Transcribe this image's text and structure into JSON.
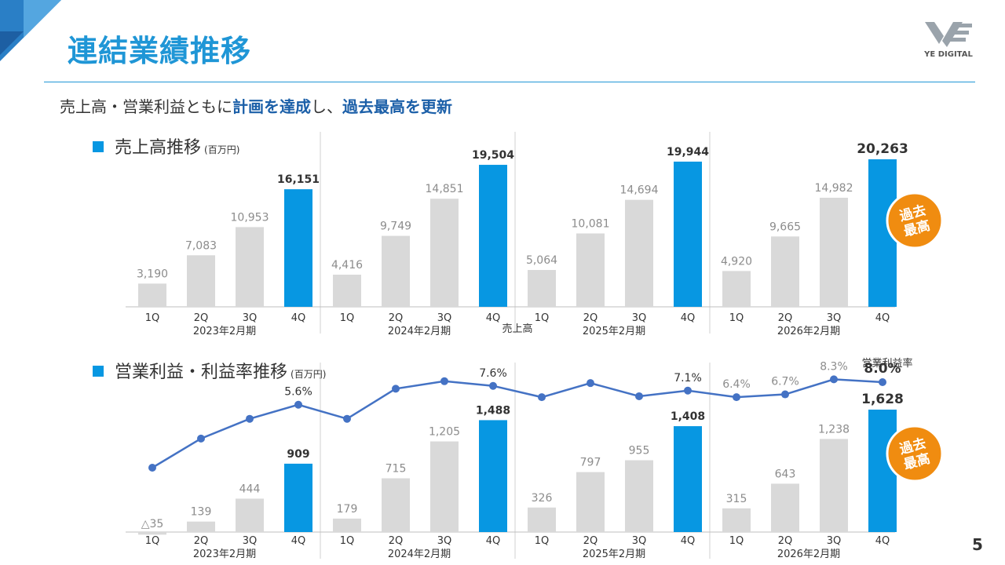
{
  "page": {
    "title": "連結業績推移",
    "logo_text": "YE DIGITAL",
    "page_number": "5",
    "subtitle": {
      "parts": [
        {
          "text": "売上高・営業利益ともに",
          "highlight": false
        },
        {
          "text": "計画を達成",
          "highlight": true
        },
        {
          "text": "し、",
          "highlight": false
        },
        {
          "text": "過去最高を更新",
          "highlight": true
        }
      ]
    },
    "colors": {
      "accent": "#1f96d6",
      "bar_highlight": "#0797e2",
      "bar_normal": "#d9d9d9",
      "line": "#4472c4",
      "badge": "#f08c10",
      "emphasis": "#1b5fa8"
    }
  },
  "chart_data": [
    {
      "type": "bar",
      "title": "売上高推移",
      "unit": "(百万円)",
      "series_label": "売上高",
      "periods": [
        "2023年2月期",
        "2024年2月期",
        "2025年2月期",
        "2026年2月期"
      ],
      "quarters": [
        "1Q",
        "2Q",
        "3Q",
        "4Q"
      ],
      "values": [
        [
          3190,
          7083,
          10953,
          16151
        ],
        [
          4416,
          9749,
          14851,
          19504
        ],
        [
          5064,
          10081,
          14694,
          19944
        ],
        [
          4920,
          9665,
          14982,
          20263
        ]
      ],
      "labels": [
        [
          "3,190",
          "7,083",
          "10,953",
          "16,151"
        ],
        [
          "4,416",
          "9,749",
          "14,851",
          "19,504"
        ],
        [
          "5,064",
          "10,081",
          "14,694",
          "19,944"
        ],
        [
          "4,920",
          "9,665",
          "14,982",
          "20,263"
        ]
      ],
      "badge": "過去\n最高"
    },
    {
      "type": "bar+line",
      "title": "営業利益・利益率推移",
      "unit": "(百万円)",
      "line_label": "営業利益率",
      "periods": [
        "2023年2月期",
        "2024年2月期",
        "2025年2月期",
        "2026年2月期"
      ],
      "quarters": [
        "1Q",
        "2Q",
        "3Q",
        "4Q"
      ],
      "values": [
        [
          -35,
          139,
          444,
          909
        ],
        [
          179,
          715,
          1205,
          1488
        ],
        [
          326,
          797,
          955,
          1408
        ],
        [
          315,
          643,
          1238,
          1628
        ]
      ],
      "labels": [
        [
          "△35",
          "139",
          "444",
          "909"
        ],
        [
          "179",
          "715",
          "1,205",
          "1,488"
        ],
        [
          "326",
          "797",
          "955",
          "1,408"
        ],
        [
          "315",
          "643",
          "1,238",
          "1,628"
        ]
      ],
      "margin_rate": [
        [
          -1.1,
          2.0,
          4.1,
          5.6
        ],
        [
          4.1,
          7.3,
          8.1,
          7.6
        ],
        [
          6.4,
          7.9,
          6.5,
          7.1
        ],
        [
          6.4,
          6.7,
          8.3,
          8.0
        ]
      ],
      "margin_labels": [
        [
          "",
          "",
          "",
          "5.6%"
        ],
        [
          "",
          "",
          "",
          "7.6%"
        ],
        [
          "",
          "",
          "",
          "7.1%"
        ],
        [
          "6.4%",
          "6.7%",
          "8.3%",
          "8.0%"
        ]
      ],
      "badge": "過去\n最高"
    }
  ]
}
